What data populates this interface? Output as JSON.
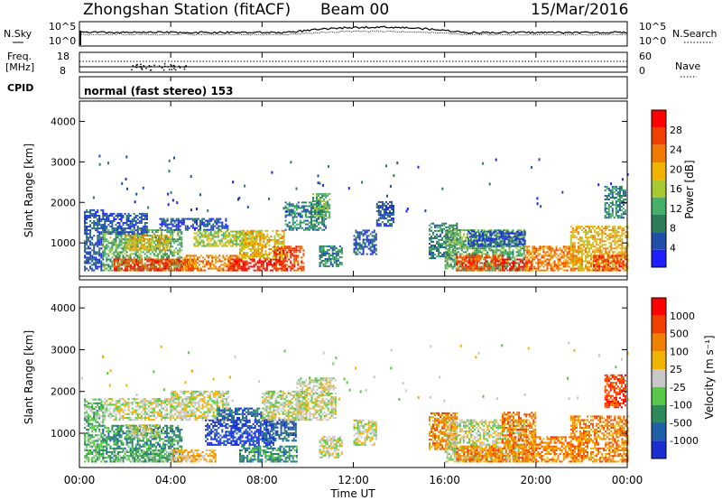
{
  "header": {
    "station": "Zhongshan Station (fitACF)",
    "beam": "Beam 00",
    "date": "15/Mar/2016"
  },
  "summary_panels": {
    "nsky_label": "N.Sky",
    "nsky_ticks": [
      "10^5",
      "10^0"
    ],
    "nsearch_label": "N.Search",
    "nsearch_ticks": [
      "10^5",
      "10^0"
    ],
    "freq_label_line1": "Freq.",
    "freq_label_line2": "[MHz]",
    "freq_ticks": [
      "18",
      "8"
    ],
    "nave_label": "Nave",
    "nave_ticks": [
      "60",
      "0"
    ],
    "cpid_label": "CPID",
    "cpid_text": "normal (fast stereo) 153"
  },
  "axes": {
    "x_label": "Time UT",
    "x_ticks": [
      "00:00",
      "04:00",
      "08:00",
      "12:00",
      "16:00",
      "20:00",
      "00:00"
    ],
    "y_label": "Slant Range [km]",
    "y_ticks": [
      "1000",
      "2000",
      "3000",
      "4000"
    ]
  },
  "colorbars": {
    "power": {
      "label": "Power [dB]",
      "ticks": [
        "4",
        "8",
        "12",
        "16",
        "20",
        "24",
        "28"
      ],
      "colors": [
        "#1f1fff",
        "#1f4fa8",
        "#2e7d5a",
        "#45b06a",
        "#a8c832",
        "#f0b400",
        "#f07a00",
        "#f04000",
        "#ff0000"
      ]
    },
    "velocity": {
      "label": "Velocity [m s⁻¹]",
      "ticks": [
        "1000",
        "500",
        "100",
        "25",
        "-25",
        "-100",
        "-500",
        "-1000"
      ],
      "colors": [
        "#1b2fd0",
        "#1f5fa8",
        "#2e8a5a",
        "#58c848",
        "#c8c8c8",
        "#f0b400",
        "#f08000",
        "#f04000",
        "#ff0000"
      ]
    }
  },
  "chart_data": [
    {
      "type": "heatmap",
      "name": "power",
      "x_range_hours": [
        0,
        24
      ],
      "y_range_km": [
        180,
        4500
      ],
      "regions": [
        {
          "t0": 0.2,
          "t1": 1.0,
          "r0": 300,
          "r1": 1800,
          "c": 1
        },
        {
          "t0": 1.0,
          "t1": 4.5,
          "r0": 300,
          "r1": 1300,
          "c": 3
        },
        {
          "t0": 1.5,
          "t1": 5.0,
          "r0": 300,
          "r1": 600,
          "c": 7
        },
        {
          "t0": 2.0,
          "t1": 4.0,
          "r0": 800,
          "r1": 1200,
          "c": 5
        },
        {
          "t0": 1.0,
          "t1": 3.0,
          "r0": 1200,
          "r1": 1700,
          "c": 1
        },
        {
          "t0": 3.5,
          "t1": 6.5,
          "r0": 1300,
          "r1": 1600,
          "c": 1
        },
        {
          "t0": 4.5,
          "t1": 7.0,
          "r0": 300,
          "r1": 700,
          "c": 6
        },
        {
          "t0": 5.0,
          "t1": 8.0,
          "r0": 900,
          "r1": 1300,
          "c": 4
        },
        {
          "t0": 6.5,
          "t1": 9.0,
          "r0": 300,
          "r1": 600,
          "c": 8
        },
        {
          "t0": 7.0,
          "t1": 9.0,
          "r0": 600,
          "r1": 1300,
          "c": 5
        },
        {
          "t0": 8.5,
          "t1": 9.8,
          "r0": 300,
          "r1": 900,
          "c": 7
        },
        {
          "t0": 9.0,
          "t1": 10.8,
          "r0": 1300,
          "r1": 2000,
          "c": 2
        },
        {
          "t0": 10.2,
          "t1": 11.0,
          "r0": 1600,
          "r1": 2200,
          "c": 3
        },
        {
          "t0": 10.5,
          "t1": 11.5,
          "r0": 400,
          "r1": 900,
          "c": 2
        },
        {
          "t0": 12.0,
          "t1": 13.0,
          "r0": 700,
          "r1": 1300,
          "c": 1
        },
        {
          "t0": 13.0,
          "t1": 13.8,
          "r0": 1400,
          "r1": 2000,
          "c": 1
        },
        {
          "t0": 15.3,
          "t1": 16.5,
          "r0": 600,
          "r1": 1500,
          "c": 2
        },
        {
          "t0": 16.0,
          "t1": 19.5,
          "r0": 300,
          "r1": 1300,
          "c": 3
        },
        {
          "t0": 16.5,
          "t1": 18.5,
          "r0": 300,
          "r1": 700,
          "c": 7
        },
        {
          "t0": 17.0,
          "t1": 19.5,
          "r0": 900,
          "r1": 1300,
          "c": 1
        },
        {
          "t0": 18.5,
          "t1": 19.8,
          "r0": 300,
          "r1": 600,
          "c": 8
        },
        {
          "t0": 19.5,
          "t1": 22.0,
          "r0": 300,
          "r1": 900,
          "c": 6
        },
        {
          "t0": 21.5,
          "t1": 24.0,
          "r0": 300,
          "r1": 1400,
          "c": 5
        },
        {
          "t0": 22.5,
          "t1": 24.0,
          "r0": 300,
          "r1": 700,
          "c": 7
        },
        {
          "t0": 23.0,
          "t1": 23.9,
          "r0": 1600,
          "r1": 2400,
          "c": 2
        }
      ]
    },
    {
      "type": "heatmap",
      "name": "velocity",
      "x_range_hours": [
        0,
        24
      ],
      "y_range_km": [
        180,
        4500
      ],
      "regions": [
        {
          "t0": 0.2,
          "t1": 1.0,
          "r0": 300,
          "r1": 1800,
          "c": 3
        },
        {
          "t0": 1.0,
          "t1": 4.5,
          "r0": 300,
          "r1": 1200,
          "c": 2
        },
        {
          "t0": 1.5,
          "t1": 4.0,
          "r0": 300,
          "r1": 600,
          "c": 3
        },
        {
          "t0": 2.0,
          "t1": 3.5,
          "r0": 900,
          "r1": 1200,
          "c": 4
        },
        {
          "t0": 1.0,
          "t1": 4.0,
          "r0": 1300,
          "r1": 1800,
          "c": 4
        },
        {
          "t0": 4.0,
          "t1": 6.5,
          "r0": 1300,
          "r1": 2000,
          "c": 4
        },
        {
          "t0": 4.0,
          "t1": 6.0,
          "r0": 300,
          "r1": 600,
          "c": 5
        },
        {
          "t0": 5.5,
          "t1": 8.5,
          "r0": 700,
          "r1": 1300,
          "c": 0
        },
        {
          "t0": 6.0,
          "t1": 8.0,
          "r0": 1300,
          "r1": 1600,
          "c": 1
        },
        {
          "t0": 7.0,
          "t1": 9.5,
          "r0": 300,
          "r1": 700,
          "c": 2
        },
        {
          "t0": 8.0,
          "t1": 9.5,
          "r0": 800,
          "r1": 1300,
          "c": 1
        },
        {
          "t0": 8.0,
          "t1": 10.0,
          "r0": 1300,
          "r1": 2000,
          "c": 4
        },
        {
          "t0": 9.5,
          "t1": 11.2,
          "r0": 1300,
          "r1": 2300,
          "c": 4
        },
        {
          "t0": 10.5,
          "t1": 11.5,
          "r0": 400,
          "r1": 900,
          "c": 4
        },
        {
          "t0": 12.0,
          "t1": 13.0,
          "r0": 700,
          "r1": 1300,
          "c": 4
        },
        {
          "t0": 15.3,
          "t1": 16.5,
          "r0": 600,
          "r1": 1500,
          "c": 6
        },
        {
          "t0": 16.0,
          "t1": 19.5,
          "r0": 300,
          "r1": 1300,
          "c": 4
        },
        {
          "t0": 16.5,
          "t1": 18.5,
          "r0": 300,
          "r1": 700,
          "c": 6
        },
        {
          "t0": 18.5,
          "t1": 20.0,
          "r0": 300,
          "r1": 1500,
          "c": 6
        },
        {
          "t0": 19.5,
          "t1": 22.0,
          "r0": 300,
          "r1": 900,
          "c": 6
        },
        {
          "t0": 21.5,
          "t1": 24.0,
          "r0": 300,
          "r1": 1400,
          "c": 6
        },
        {
          "t0": 23.0,
          "t1": 23.9,
          "r0": 1600,
          "r1": 2400,
          "c": 7
        }
      ]
    }
  ]
}
